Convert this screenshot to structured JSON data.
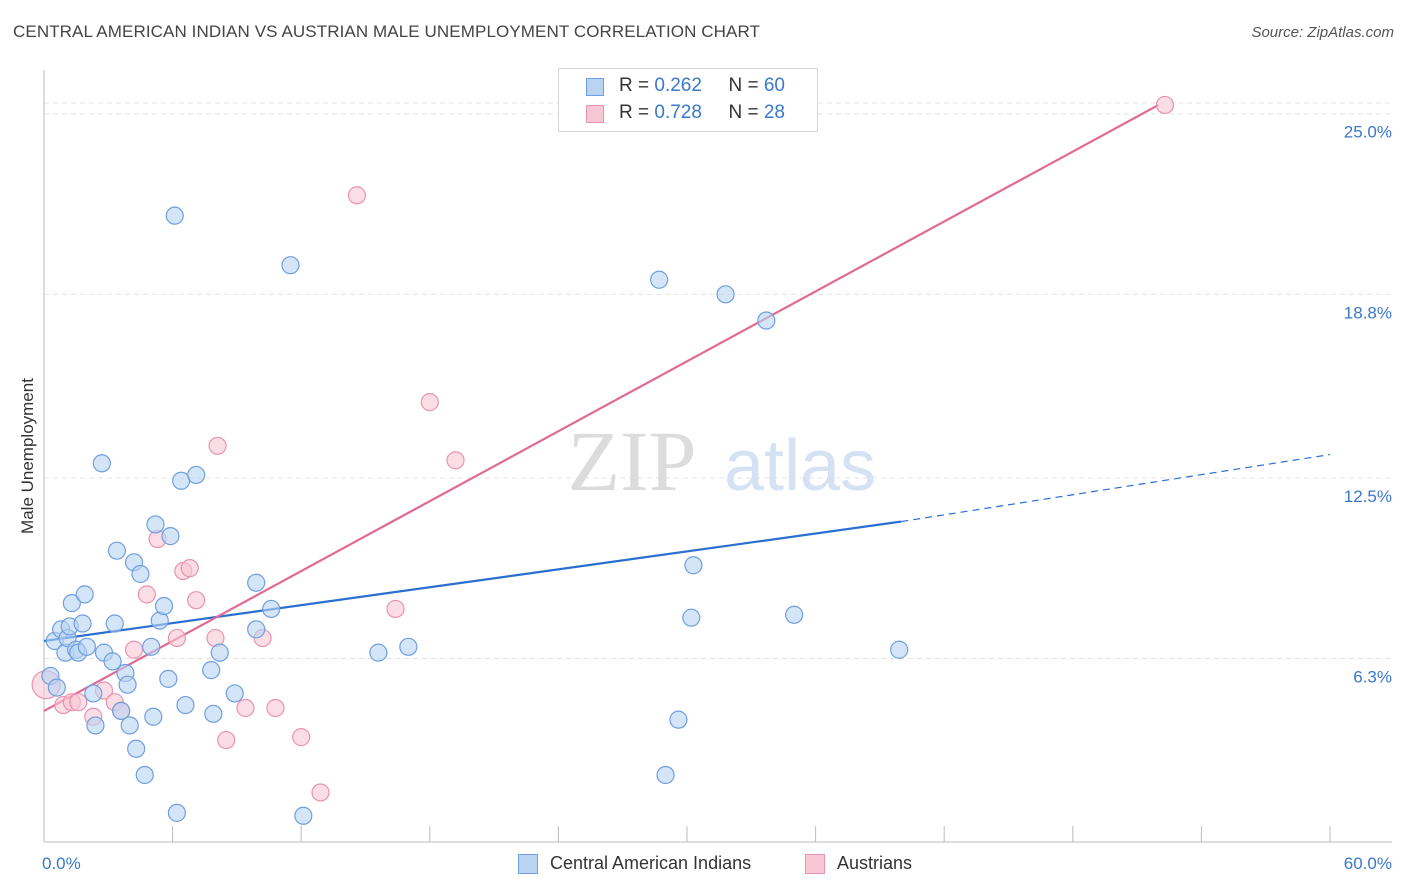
{
  "title": "CENTRAL AMERICAN INDIAN VS AUSTRIAN MALE UNEMPLOYMENT CORRELATION CHART",
  "source": "Source: ZipAtlas.com",
  "watermark": {
    "zip": "ZIP",
    "atlas": "atlas"
  },
  "legend_stats": [
    {
      "r_label": "R = ",
      "r_value": "0.262",
      "n_label": "N = ",
      "n_value": "60"
    },
    {
      "r_label": "R = ",
      "r_value": "0.728",
      "n_label": "N = ",
      "n_value": "28"
    }
  ],
  "colors": {
    "blue_fill": "#b9d3f3",
    "blue_stroke": "#6f9fde",
    "blue_line": "#2a6fd0",
    "pink_fill": "#f8c7d6",
    "pink_stroke": "#e993b0",
    "pink_line": "#e06a93",
    "grid": "#e3e3e3",
    "tick_label": "#3a78c9"
  },
  "chart_data": {
    "type": "scatter",
    "title": "CENTRAL AMERICAN INDIAN VS AUSTRIAN MALE UNEMPLOYMENT CORRELATION CHART",
    "xlabel": "",
    "ylabel": "Male Unemployment",
    "xlim": [
      0,
      60
    ],
    "ylim": [
      0,
      26.5
    ],
    "x_tick_labels": [
      "0.0%",
      "60.0%"
    ],
    "y_ticks": [
      6.3,
      12.5,
      18.8,
      25.0
    ],
    "y_tick_labels": [
      "6.3%",
      "12.5%",
      "18.8%",
      "25.0%"
    ],
    "grid": true,
    "legend_position": "top-center",
    "series": [
      {
        "name": "Central American Indians",
        "color": "#6f9fde",
        "r": 0.262,
        "n": 60,
        "trend": {
          "x0": 0,
          "y0": 6.9,
          "x1": 40,
          "y1": 11.0,
          "dash_x1": 60,
          "dash_y1": 13.3
        },
        "points": [
          [
            0.3,
            5.7
          ],
          [
            0.5,
            6.9
          ],
          [
            0.6,
            5.3
          ],
          [
            0.8,
            7.3
          ],
          [
            1.0,
            6.5
          ],
          [
            1.1,
            7.0
          ],
          [
            1.2,
            7.4
          ],
          [
            1.3,
            8.2
          ],
          [
            1.5,
            6.6
          ],
          [
            1.6,
            6.5
          ],
          [
            1.8,
            7.5
          ],
          [
            1.9,
            8.5
          ],
          [
            2.0,
            6.7
          ],
          [
            2.3,
            5.1
          ],
          [
            2.4,
            4.0
          ],
          [
            2.7,
            13.0
          ],
          [
            2.8,
            6.5
          ],
          [
            3.2,
            6.2
          ],
          [
            3.3,
            7.5
          ],
          [
            3.4,
            10.0
          ],
          [
            3.6,
            4.5
          ],
          [
            3.8,
            5.8
          ],
          [
            3.9,
            5.4
          ],
          [
            4.0,
            4.0
          ],
          [
            4.2,
            9.6
          ],
          [
            4.3,
            3.2
          ],
          [
            4.5,
            9.2
          ],
          [
            4.7,
            2.3
          ],
          [
            5.0,
            6.7
          ],
          [
            5.1,
            4.3
          ],
          [
            5.2,
            10.9
          ],
          [
            5.4,
            7.6
          ],
          [
            5.6,
            8.1
          ],
          [
            5.8,
            5.6
          ],
          [
            5.9,
            10.5
          ],
          [
            6.2,
            1.0
          ],
          [
            6.1,
            21.5
          ],
          [
            6.4,
            12.4
          ],
          [
            6.6,
            4.7
          ],
          [
            7.1,
            12.6
          ],
          [
            7.8,
            5.9
          ],
          [
            7.9,
            4.4
          ],
          [
            8.2,
            6.5
          ],
          [
            8.9,
            5.1
          ],
          [
            9.9,
            7.3
          ],
          [
            9.9,
            8.9
          ],
          [
            10.6,
            8.0
          ],
          [
            11.5,
            19.8
          ],
          [
            12.1,
            0.9
          ],
          [
            15.6,
            6.5
          ],
          [
            17.0,
            6.7
          ],
          [
            28.7,
            19.3
          ],
          [
            29.0,
            2.3
          ],
          [
            29.6,
            4.2
          ],
          [
            30.2,
            7.7
          ],
          [
            30.3,
            9.5
          ],
          [
            31.8,
            18.8
          ],
          [
            33.7,
            17.9
          ],
          [
            35.0,
            7.8
          ],
          [
            39.9,
            6.6
          ]
        ]
      },
      {
        "name": "Austrians",
        "color": "#e993b0",
        "r": 0.728,
        "n": 28,
        "trend": {
          "x0": 0,
          "y0": 4.5,
          "x1": 52,
          "y1": 25.3
        },
        "points": [
          [
            0.1,
            5.4
          ],
          [
            0.9,
            4.7
          ],
          [
            1.3,
            4.8
          ],
          [
            1.6,
            4.8
          ],
          [
            2.3,
            4.3
          ],
          [
            2.8,
            5.2
          ],
          [
            3.3,
            4.8
          ],
          [
            3.6,
            4.5
          ],
          [
            4.2,
            6.6
          ],
          [
            4.8,
            8.5
          ],
          [
            5.3,
            10.4
          ],
          [
            6.2,
            7.0
          ],
          [
            6.5,
            9.3
          ],
          [
            6.8,
            9.4
          ],
          [
            7.1,
            8.3
          ],
          [
            8.0,
            7.0
          ],
          [
            8.1,
            13.6
          ],
          [
            8.5,
            3.5
          ],
          [
            9.4,
            4.6
          ],
          [
            10.2,
            7.0
          ],
          [
            10.8,
            4.6
          ],
          [
            12.0,
            3.6
          ],
          [
            12.9,
            1.7
          ],
          [
            14.6,
            22.2
          ],
          [
            16.4,
            8.0
          ],
          [
            18.0,
            15.1
          ],
          [
            19.2,
            13.1
          ],
          [
            52.3,
            25.3
          ]
        ]
      }
    ]
  }
}
